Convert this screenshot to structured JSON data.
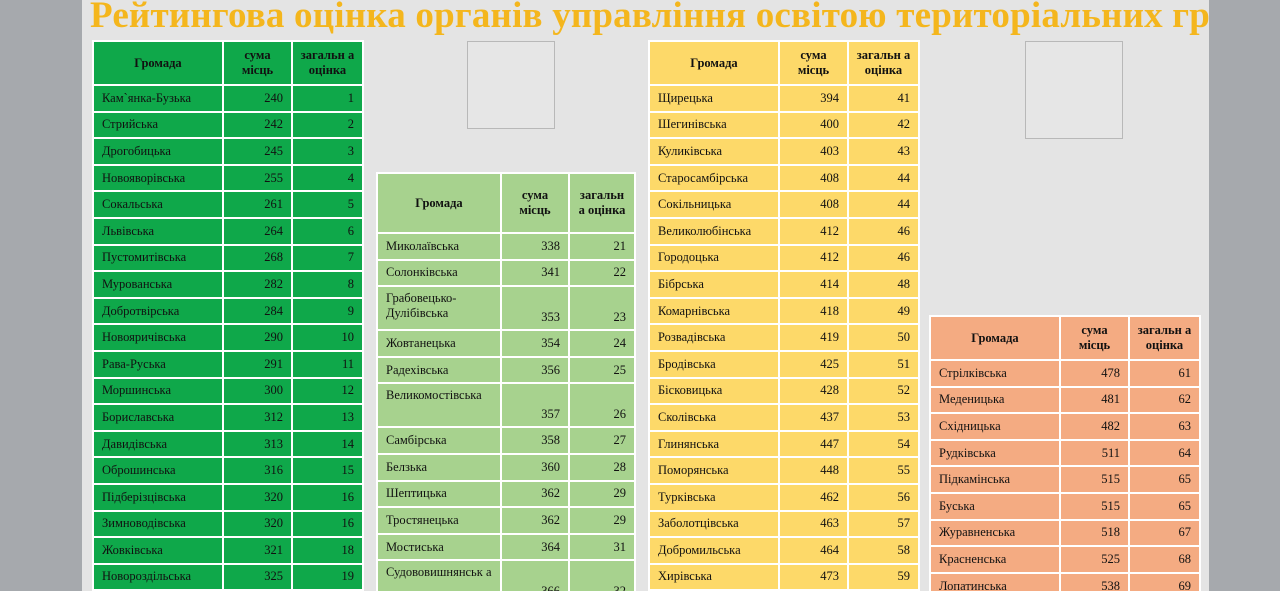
{
  "title": "Рейтингова оцінка органів управління освітою територіальних гр",
  "headers": {
    "name": "Громада",
    "sum": "сума місць",
    "rank": "загальн а оцінка"
  },
  "tables": [
    {
      "id": "t1",
      "rows": [
        [
          "Кам`янка-Бузька",
          "240",
          "1"
        ],
        [
          "Стрийська",
          "242",
          "2"
        ],
        [
          "Дрогобицька",
          "245",
          "3"
        ],
        [
          "Новояворівська",
          "255",
          "4"
        ],
        [
          "Сокальська",
          "261",
          "5"
        ],
        [
          "Львівська",
          "264",
          "6"
        ],
        [
          "Пустомитівська",
          "268",
          "7"
        ],
        [
          "Мурованська",
          "282",
          "8"
        ],
        [
          "Добротвірська",
          "284",
          "9"
        ],
        [
          "Новояричівська",
          "290",
          "10"
        ],
        [
          "Рава-Руська",
          "291",
          "11"
        ],
        [
          "Моршинська",
          "300",
          "12"
        ],
        [
          "Бориславська",
          "312",
          "13"
        ],
        [
          "Давидівська",
          "313",
          "14"
        ],
        [
          "Оброшинська",
          "316",
          "15"
        ],
        [
          "Підберізцівська",
          "320",
          "16"
        ],
        [
          "Зимноводівська",
          "320",
          "16"
        ],
        [
          "Жовківська",
          "321",
          "18"
        ],
        [
          "Новороздільська",
          "325",
          "19"
        ]
      ]
    },
    {
      "id": "t2",
      "rows": [
        [
          "Миколаївська",
          "338",
          "21"
        ],
        [
          "Солонківська",
          "341",
          "22"
        ],
        [
          "Грабовецько-Дулібівська",
          "353",
          "23"
        ],
        [
          "Жовтанецька",
          "354",
          "24"
        ],
        [
          "Радехівська",
          "356",
          "25"
        ],
        [
          "Великомостівська",
          "357",
          "26"
        ],
        [
          "Самбірська",
          "358",
          "27"
        ],
        [
          "Белзька",
          "360",
          "28"
        ],
        [
          "Шептицька",
          "362",
          "29"
        ],
        [
          "Тростянецька",
          "362",
          "29"
        ],
        [
          "Мостиська",
          "364",
          "31"
        ],
        [
          "Судововишнянськ а",
          "366",
          "32"
        ]
      ]
    },
    {
      "id": "t3",
      "rows": [
        [
          "Щирецька",
          "394",
          "41"
        ],
        [
          "Шегинівська",
          "400",
          "42"
        ],
        [
          "Куликівська",
          "403",
          "43"
        ],
        [
          "Старосамбірська",
          "408",
          "44"
        ],
        [
          "Сокільницька",
          "408",
          "44"
        ],
        [
          "Великолюбінська",
          "412",
          "46"
        ],
        [
          "Городоцька",
          "412",
          "46"
        ],
        [
          "Бібрська",
          "414",
          "48"
        ],
        [
          "Комарнівська",
          "418",
          "49"
        ],
        [
          "Розвадівська",
          "419",
          "50"
        ],
        [
          "Бродівська",
          "425",
          "51"
        ],
        [
          "Бісковицька",
          "428",
          "52"
        ],
        [
          "Сколівська",
          "437",
          "53"
        ],
        [
          "Глинянська",
          "447",
          "54"
        ],
        [
          "Поморянська",
          "448",
          "55"
        ],
        [
          "Турківська",
          "462",
          "56"
        ],
        [
          "Заболотцівська",
          "463",
          "57"
        ],
        [
          "Добромильська",
          "464",
          "58"
        ],
        [
          "Хирівська",
          "473",
          "59"
        ]
      ]
    },
    {
      "id": "t4",
      "rows": [
        [
          "Стрілківська",
          "478",
          "61"
        ],
        [
          "Меденицька",
          "481",
          "62"
        ],
        [
          "Східницька",
          "482",
          "63"
        ],
        [
          "Рудківська",
          "511",
          "64"
        ],
        [
          "Підкамінська",
          "515",
          "65"
        ],
        [
          "Буська",
          "515",
          "65"
        ],
        [
          "Журавненська",
          "518",
          "67"
        ],
        [
          "Красненська",
          "525",
          "68"
        ],
        [
          "Лопатинська",
          "538",
          "69"
        ]
      ]
    }
  ]
}
